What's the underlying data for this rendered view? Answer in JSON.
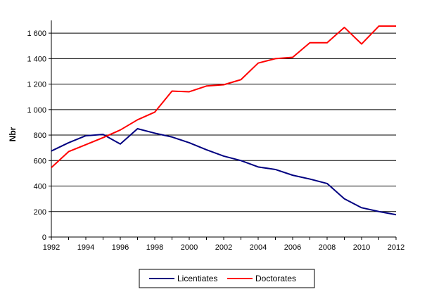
{
  "chart_data": {
    "type": "line",
    "title": "",
    "xlabel": "",
    "ylabel": "Nbr",
    "x": [
      1992,
      1993,
      1994,
      1995,
      1996,
      1997,
      1998,
      1999,
      2000,
      2001,
      2002,
      2003,
      2004,
      2005,
      2006,
      2007,
      2008,
      2009,
      2010,
      2011,
      2012
    ],
    "xlim": [
      1992,
      2012
    ],
    "ylim": [
      0,
      1700
    ],
    "x_ticks": [
      "1992",
      "1994",
      "1996",
      "1998",
      "2000",
      "2002",
      "2004",
      "2006",
      "2008",
      "2010",
      "2012"
    ],
    "y_ticks": [
      "0",
      "200",
      "400",
      "600",
      "800",
      "1 000",
      "1 200",
      "1 400",
      "1 600"
    ],
    "y_tick_values": [
      0,
      200,
      400,
      600,
      800,
      1000,
      1200,
      1400,
      1600
    ],
    "grid": "horizontal",
    "legend_position": "bottom",
    "series": [
      {
        "name": "Licentiates",
        "color": "#000080",
        "values": [
          675,
          740,
          795,
          805,
          730,
          850,
          815,
          785,
          740,
          685,
          635,
          600,
          550,
          530,
          485,
          455,
          420,
          300,
          230,
          200,
          175
        ]
      },
      {
        "name": "Doctorates",
        "color": "#ff0000",
        "values": [
          545,
          670,
          725,
          780,
          840,
          920,
          980,
          1145,
          1140,
          1185,
          1195,
          1235,
          1365,
          1400,
          1410,
          1525,
          1525,
          1645,
          1515,
          1655,
          1655
        ]
      }
    ]
  }
}
